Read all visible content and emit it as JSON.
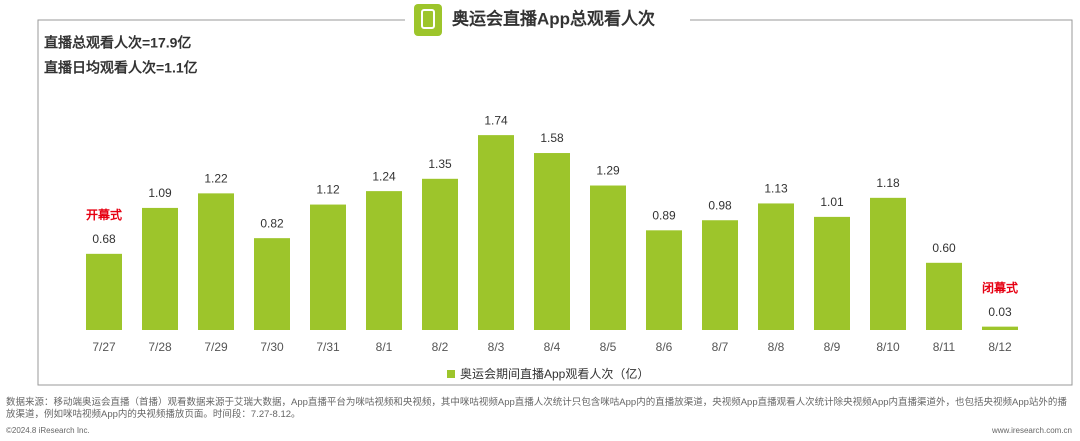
{
  "chart_data": {
    "type": "bar",
    "title": "奥运会直播App总观看人次",
    "stats": [
      "直播总观看人次=17.9亿",
      "直播日均观看人次=1.1亿"
    ],
    "categories": [
      "7/27",
      "7/28",
      "7/29",
      "7/30",
      "7/31",
      "8/1",
      "8/2",
      "8/3",
      "8/4",
      "8/5",
      "8/6",
      "8/7",
      "8/8",
      "8/9",
      "8/10",
      "8/11",
      "8/12"
    ],
    "series": [
      {
        "name": "奥运会期间直播App观看人次（亿）",
        "color": "#9dc52b",
        "values": [
          0.68,
          1.09,
          1.22,
          0.82,
          1.12,
          1.24,
          1.35,
          1.74,
          1.58,
          1.29,
          0.89,
          0.98,
          1.13,
          1.01,
          1.18,
          0.6,
          0.03
        ],
        "value_labels": [
          "0.68",
          "1.09",
          "1.22",
          "0.82",
          "1.12",
          "1.24",
          "1.35",
          "1.74",
          "1.58",
          "1.29",
          "0.89",
          "0.98",
          "1.13",
          "1.01",
          "1.18",
          "0.60",
          "0.03"
        ]
      }
    ],
    "annotations": [
      {
        "text": "开幕式",
        "category": "7/27"
      },
      {
        "text": "闭幕式",
        "category": "8/12"
      }
    ],
    "legend": "bottom"
  },
  "footer": {
    "source": "数据来源：移动端奥运会直播（首播）观看数据来源于艾瑞大数据，App直播平台为咪咕视频和央视频，其中咪咕视频App直播人次统计只包含咪咕App内的直播放渠道，央视频App直播观看人次统计除央视频App内直播渠道外，也包括央视频App站外的播放渠道，例如咪咕视频App内的央视频播放页面。时间段：7.27-8.12。",
    "copyright": "©2024.8 iResearch Inc.",
    "website": "www.iresearch.com.cn"
  }
}
